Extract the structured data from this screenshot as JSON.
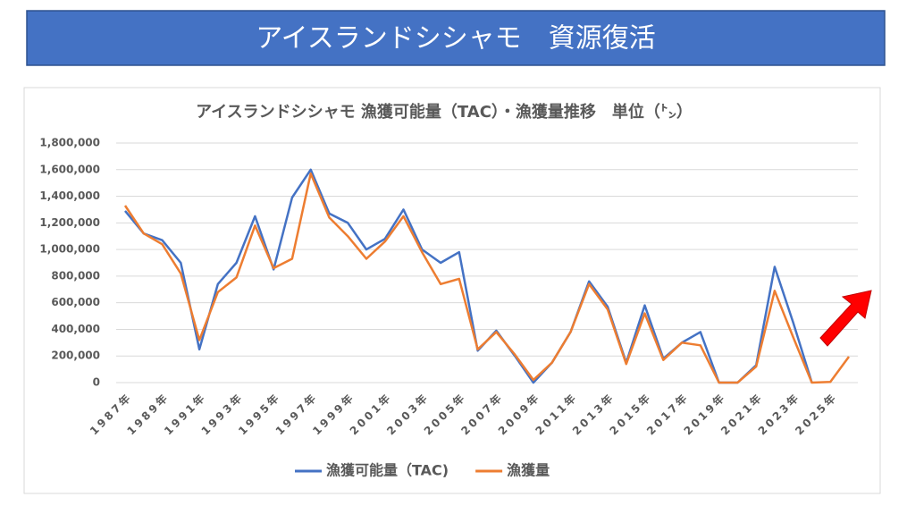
{
  "header": {
    "title": "アイスランドシシャモ　資源復活"
  },
  "chart_data": {
    "type": "line",
    "title": "アイスランドシシャモ 漁獲可能量（TAC）・漁獲量推移　単位（㌧）",
    "categories": [
      "1987年",
      null,
      "1989年",
      null,
      "1991年",
      null,
      "1993年",
      null,
      "1995年",
      null,
      "1997年",
      null,
      "1999年",
      null,
      "2001年",
      null,
      "2003年",
      null,
      "2005年",
      null,
      "2007年",
      null,
      "2009年",
      null,
      "2011年",
      null,
      "2013年",
      null,
      "2015年",
      null,
      "2017年",
      null,
      "2019年",
      null,
      "2021年",
      null,
      "2023年",
      null,
      "2025年",
      null
    ],
    "series": [
      {
        "name": "漁獲可能量（TAC)",
        "color": "#4472c4",
        "values": [
          1290000,
          1120000,
          1070000,
          900000,
          250000,
          740000,
          900000,
          1250000,
          850000,
          1390000,
          1600000,
          1270000,
          1200000,
          1000000,
          1080000,
          1300000,
          1000000,
          900000,
          980000,
          240000,
          390000,
          200000,
          0,
          150000,
          380000,
          760000,
          570000,
          150000,
          580000,
          180000,
          300000,
          380000,
          0,
          0,
          130000,
          870000,
          450000,
          0,
          null,
          null
        ]
      },
      {
        "name": "漁獲量",
        "color": "#ed7d31",
        "values": [
          1330000,
          1120000,
          1040000,
          820000,
          320000,
          680000,
          790000,
          1180000,
          860000,
          930000,
          1570000,
          1240000,
          1100000,
          930000,
          1060000,
          1250000,
          980000,
          740000,
          780000,
          250000,
          380000,
          210000,
          20000,
          150000,
          380000,
          740000,
          550000,
          140000,
          520000,
          170000,
          300000,
          280000,
          0,
          0,
          120000,
          690000,
          340000,
          0,
          5000,
          195000
        ]
      }
    ],
    "ylim": [
      0,
      1800000
    ],
    "yticks": [
      0,
      {
        "value": 200000,
        "label": "200,000"
      },
      {
        "value": 400000,
        "label": "400,000"
      },
      {
        "value": 600000,
        "label": "600,000"
      },
      {
        "value": 800000,
        "label": "800,000"
      },
      {
        "value": 1000000,
        "label": "1,000,000"
      },
      {
        "value": 1200000,
        "label": "1,200,000"
      },
      {
        "value": 1400000,
        "label": "1,400,000"
      },
      {
        "value": 1600000,
        "label": "1,600,000"
      },
      {
        "value": 1800000,
        "label": "1,800,000"
      }
    ],
    "grid": true,
    "legend": "bottom"
  }
}
